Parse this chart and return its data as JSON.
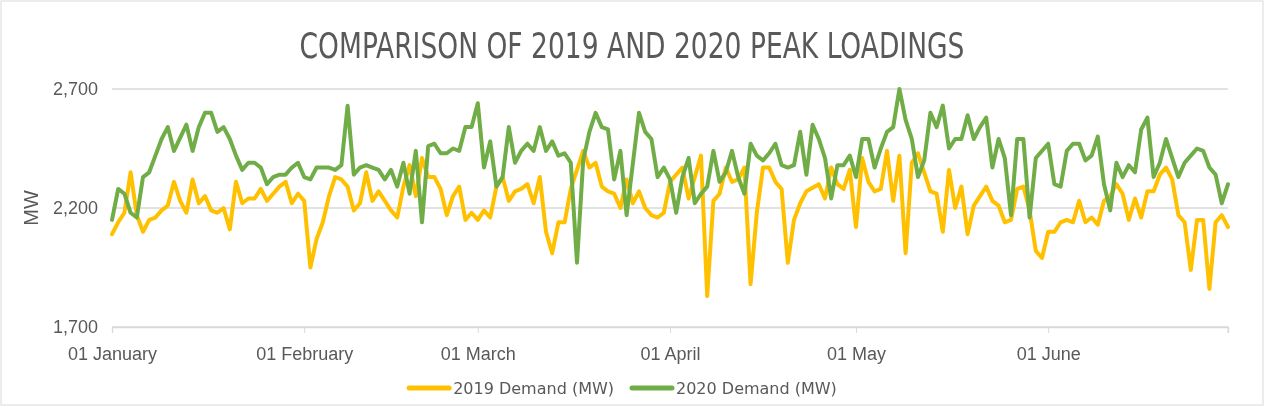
{
  "chart_data": {
    "type": "line",
    "title": "COMPARISON OF 2019 AND 2020 PEAK LOADINGS",
    "ylabel": "MW",
    "xlim": [
      "--01-01",
      "--06-30"
    ],
    "xticks": [
      {
        "value": "--01-01",
        "label": "01 January"
      },
      {
        "value": "--02-01",
        "label": "01 February"
      },
      {
        "value": "--03-01",
        "label": "01 March"
      },
      {
        "value": "--04-01",
        "label": "01 April"
      },
      {
        "value": "--05-01",
        "label": "01 May"
      },
      {
        "value": "--06-01",
        "label": "01 June"
      }
    ],
    "ylim": [
      1700,
      2700
    ],
    "yticks": [
      {
        "value": 1700,
        "label": "1,700"
      },
      {
        "value": 2200,
        "label": "2,200"
      },
      {
        "value": 2700,
        "label": "2,700"
      }
    ],
    "grid": "y",
    "legend": "bottom",
    "line_style": "solid",
    "marker": "none",
    "series": [
      {
        "name": "2019 Demand (MW)",
        "color": "#ffc000",
        "x": [
          "--01-01",
          "--01-02",
          "--01-03",
          "--01-04",
          "--01-05",
          "--01-06",
          "--01-07",
          "--01-08",
          "--01-09",
          "--01-10",
          "--01-11",
          "--01-12",
          "--01-13",
          "--01-14",
          "--01-15",
          "--01-16",
          "--01-17",
          "--01-18",
          "--01-19",
          "--01-20",
          "--01-21",
          "--01-22",
          "--01-23",
          "--01-24",
          "--01-25",
          "--01-26",
          "--01-27",
          "--01-28",
          "--01-29",
          "--01-30",
          "--01-31",
          "--02-01",
          "--02-02",
          "--02-03",
          "--02-04",
          "--02-05",
          "--02-06",
          "--02-07",
          "--02-08",
          "--02-09",
          "--02-10",
          "--02-11",
          "--02-12",
          "--02-13",
          "--02-15",
          "--02-16",
          "--02-17",
          "--02-18",
          "--02-19",
          "--02-20",
          "--02-21",
          "--02-22",
          "--02-23",
          "--02-24",
          "--02-25",
          "--02-26",
          "--02-27",
          "--02-28",
          "--03-01",
          "--03-02",
          "--03-03",
          "--03-04",
          "--03-05",
          "--03-06",
          "--03-07",
          "--03-08",
          "--03-09",
          "--03-10",
          "--03-11",
          "--03-12",
          "--03-13",
          "--03-14",
          "--03-15",
          "--03-16",
          "--03-18",
          "--03-19",
          "--03-20",
          "--03-21",
          "--03-22",
          "--03-23",
          "--03-24",
          "--03-25",
          "--03-26",
          "--03-27",
          "--03-28",
          "--03-29",
          "--03-30",
          "--03-31",
          "--04-01",
          "--04-03",
          "--04-04",
          "--04-06",
          "--04-07",
          "--04-08",
          "--04-09",
          "--04-10",
          "--04-11",
          "--04-12",
          "--04-13",
          "--04-14",
          "--04-15",
          "--04-16",
          "--04-17",
          "--04-18",
          "--04-19",
          "--04-20",
          "--04-21",
          "--04-22",
          "--04-23",
          "--04-25",
          "--04-26",
          "--04-27",
          "--04-28",
          "--04-29",
          "--04-30",
          "--05-01",
          "--05-02",
          "--05-03",
          "--05-04",
          "--05-05",
          "--05-06",
          "--05-07",
          "--05-08",
          "--05-09",
          "--05-10",
          "--05-11",
          "--05-13",
          "--05-14",
          "--05-15",
          "--05-16",
          "--05-17",
          "--05-18",
          "--05-19",
          "--05-20",
          "--05-22",
          "--05-23",
          "--05-24",
          "--05-25",
          "--05-26",
          "--05-27",
          "--05-28",
          "--05-29",
          "--05-30",
          "--05-31",
          "--06-01",
          "--06-02",
          "--06-03",
          "--06-04",
          "--06-05",
          "--06-06",
          "--06-07",
          "--06-08",
          "--06-09",
          "--06-10",
          "--06-11",
          "--06-12",
          "--06-13",
          "--06-14",
          "--06-15",
          "--06-16",
          "--06-17",
          "--06-18",
          "--06-19",
          "--06-20",
          "--06-21",
          "--06-22",
          "--06-23",
          "--06-24",
          "--06-25",
          "--06-26",
          "--06-27",
          "--06-28",
          "--06-29",
          "--06-30"
        ],
        "values": [
          2090,
          2140,
          2180,
          2350,
          2170,
          2100,
          2150,
          2160,
          2190,
          2210,
          2310,
          2230,
          2180,
          2320,
          2220,
          2250,
          2190,
          2180,
          2200,
          2110,
          2310,
          2220,
          2240,
          2240,
          2280,
          2230,
          2260,
          2290,
          2310,
          2220,
          2260,
          2230,
          1950,
          2070,
          2140,
          2250,
          2330,
          2320,
          2290,
          2190,
          2220,
          2350,
          2230,
          2270,
          2190,
          2160,
          2290,
          2380,
          2250,
          2410,
          2330,
          2330,
          2280,
          2170,
          2250,
          2290,
          2150,
          2180,
          2150,
          2190,
          2160,
          2290,
          2330,
          2230,
          2270,
          2280,
          2300,
          2220,
          2330,
          2100,
          2010,
          2140,
          2140,
          2280,
          2440,
          2370,
          2390,
          2290,
          2270,
          2260,
          2200,
          2320,
          2220,
          2270,
          2200,
          2170,
          2160,
          2180,
          2310,
          2370,
          2240,
          2420,
          1830,
          2230,
          2260,
          2370,
          2310,
          2320,
          2370,
          1880,
          2180,
          2370,
          2370,
          2310,
          2280,
          1970,
          2150,
          2220,
          2270,
          2300,
          2240,
          2370,
          2300,
          2280,
          2360,
          2120,
          2410,
          2310,
          2270,
          2280,
          2440,
          2230,
          2420,
          2010,
          2390,
          2430,
          2270,
          2260,
          2100,
          2360,
          2200,
          2290,
          2090,
          2210,
          2290,
          2230,
          2210,
          2140,
          2150,
          2280,
          2290,
          2190,
          2020,
          1990,
          2100,
          2100,
          2140,
          2150,
          2140,
          2230,
          2140,
          2160,
          2130,
          2230,
          2250,
          2300,
          2260,
          2150,
          2240,
          2160,
          2270,
          2270,
          2340,
          2370,
          2320,
          2170,
          2140,
          1940,
          2150,
          2150,
          1860,
          2140,
          2170,
          2120
        ]
      },
      {
        "name": "2020 Demand (MW)",
        "color": "#70ad47",
        "x": [
          "--01-01",
          "--01-02",
          "--01-03",
          "--01-04",
          "--01-05",
          "--01-06",
          "--01-07",
          "--01-08",
          "--01-09",
          "--01-10",
          "--01-11",
          "--01-13",
          "--01-14",
          "--01-15",
          "--01-16",
          "--01-17",
          "--01-18",
          "--01-19",
          "--01-20",
          "--01-21",
          "--01-22",
          "--01-23",
          "--01-24",
          "--01-25",
          "--01-26",
          "--01-27",
          "--01-28",
          "--01-29",
          "--01-30",
          "--01-31",
          "--02-01",
          "--02-02",
          "--02-03",
          "--02-05",
          "--02-06",
          "--02-07",
          "--02-08",
          "--02-09",
          "--02-10",
          "--02-11",
          "--02-12",
          "--02-13",
          "--02-14",
          "--02-15",
          "--02-16",
          "--02-17",
          "--02-18",
          "--02-19",
          "--02-20",
          "--02-21",
          "--02-22",
          "--02-23",
          "--02-24",
          "--02-25",
          "--02-26",
          "--02-27",
          "--02-28",
          "--03-01",
          "--03-02",
          "--03-03",
          "--03-04",
          "--03-05",
          "--03-06",
          "--03-07",
          "--03-08",
          "--03-09",
          "--03-10",
          "--03-11",
          "--03-12",
          "--03-13",
          "--03-14",
          "--03-15",
          "--03-16",
          "--03-17",
          "--03-18",
          "--03-19",
          "--03-20",
          "--03-21",
          "--03-22",
          "--03-23",
          "--03-24",
          "--03-25",
          "--03-27",
          "--03-28",
          "--03-29",
          "--03-30",
          "--03-31",
          "--04-01",
          "--04-02",
          "--04-03",
          "--04-04",
          "--04-05",
          "--04-06",
          "--04-07",
          "--04-08",
          "--04-09",
          "--04-10",
          "--04-11",
          "--04-12",
          "--04-13",
          "--04-14",
          "--04-15",
          "--04-16",
          "--04-17",
          "--04-18",
          "--04-19",
          "--04-20",
          "--04-21",
          "--04-22",
          "--04-23",
          "--04-24",
          "--04-25",
          "--04-26",
          "--04-27",
          "--04-28",
          "--04-29",
          "--04-30",
          "--05-01",
          "--05-02",
          "--05-03",
          "--05-04",
          "--05-05",
          "--05-06",
          "--05-07",
          "--05-08",
          "--05-09",
          "--05-10",
          "--05-11",
          "--05-12",
          "--05-13",
          "--05-14",
          "--05-15",
          "--05-16",
          "--05-17",
          "--05-18",
          "--05-19",
          "--05-20",
          "--05-21",
          "--05-22",
          "--05-23",
          "--05-24",
          "--05-25",
          "--05-26",
          "--05-27",
          "--05-28",
          "--05-29",
          "--05-30",
          "--06-01",
          "--06-02",
          "--06-03",
          "--06-04",
          "--06-05",
          "--06-06",
          "--06-07",
          "--06-08",
          "--06-09",
          "--06-10",
          "--06-11",
          "--06-12",
          "--06-13",
          "--06-14",
          "--06-15",
          "--06-16",
          "--06-17",
          "--06-18",
          "--06-19",
          "--06-20",
          "--06-21",
          "--06-22",
          "--06-23",
          "--06-24",
          "--06-25",
          "--06-26",
          "--06-27",
          "--06-28",
          "--06-29",
          "--06-30"
        ],
        "values": [
          2150,
          2280,
          2260,
          2180,
          2160,
          2330,
          2350,
          2420,
          2490,
          2540,
          2440,
          2550,
          2440,
          2540,
          2600,
          2600,
          2520,
          2540,
          2490,
          2420,
          2360,
          2390,
          2390,
          2370,
          2300,
          2330,
          2340,
          2340,
          2370,
          2390,
          2330,
          2320,
          2370,
          2370,
          2360,
          2380,
          2630,
          2340,
          2370,
          2380,
          2370,
          2360,
          2320,
          2360,
          2290,
          2390,
          2260,
          2440,
          2140,
          2460,
          2470,
          2430,
          2430,
          2450,
          2440,
          2540,
          2540,
          2640,
          2370,
          2480,
          2290,
          2330,
          2540,
          2390,
          2440,
          2470,
          2440,
          2540,
          2440,
          2480,
          2420,
          2430,
          2390,
          1970,
          2400,
          2520,
          2600,
          2540,
          2530,
          2320,
          2440,
          2170,
          2600,
          2520,
          2490,
          2330,
          2370,
          2320,
          2180,
          2330,
          2410,
          2220,
          2260,
          2290,
          2440,
          2310,
          2350,
          2440,
          2330,
          2260,
          2470,
          2420,
          2400,
          2430,
          2470,
          2380,
          2370,
          2380,
          2520,
          2340,
          2550,
          2490,
          2410,
          2240,
          2380,
          2380,
          2420,
          2330,
          2490,
          2490,
          2370,
          2450,
          2520,
          2540,
          2700,
          2570,
          2490,
          2330,
          2400,
          2600,
          2540,
          2630,
          2450,
          2490,
          2490,
          2590,
          2490,
          2540,
          2580,
          2370,
          2490,
          2410,
          2170,
          2490,
          2490,
          2160,
          2410,
          2470,
          2300,
          2290,
          2440,
          2470,
          2470,
          2400,
          2420,
          2500,
          2300,
          2190,
          2390,
          2330,
          2380,
          2350,
          2530,
          2580,
          2330,
          2390,
          2490,
          2410,
          2330,
          2390,
          2420,
          2450,
          2440,
          2370,
          2340,
          2220,
          2300
        ]
      }
    ]
  }
}
